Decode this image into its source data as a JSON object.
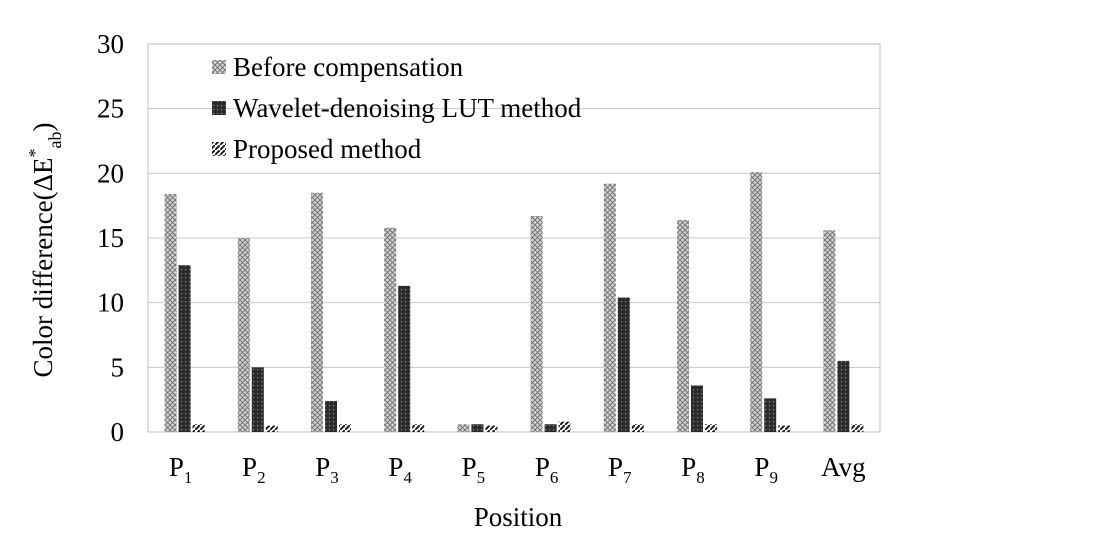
{
  "chart_data": {
    "type": "bar",
    "title": "",
    "xlabel": "Position",
    "ylabel": "Color difference(ΔE*ab)",
    "ylim": [
      0,
      30
    ],
    "yticks": [
      0,
      5,
      10,
      15,
      20,
      25,
      30
    ],
    "grid": true,
    "legend_position": "top-left",
    "categories": [
      {
        "main": "P",
        "sub": "1"
      },
      {
        "main": "P",
        "sub": "2"
      },
      {
        "main": "P",
        "sub": "3"
      },
      {
        "main": "P",
        "sub": "4"
      },
      {
        "main": "P",
        "sub": "5"
      },
      {
        "main": "P",
        "sub": "6"
      },
      {
        "main": "P",
        "sub": "7"
      },
      {
        "main": "P",
        "sub": "8"
      },
      {
        "main": "P",
        "sub": "9"
      },
      {
        "main": "Avg",
        "sub": ""
      }
    ],
    "series": [
      {
        "name": "Before compensation",
        "pattern": "crosshatch",
        "values": [
          18.4,
          15.0,
          18.5,
          15.8,
          0.6,
          16.7,
          19.2,
          16.4,
          20.1,
          15.6
        ]
      },
      {
        "name": "Wavelet-denoising LUT method",
        "pattern": "dark",
        "values": [
          12.9,
          5.0,
          2.4,
          11.3,
          0.6,
          0.6,
          10.4,
          3.6,
          2.6,
          5.5
        ]
      },
      {
        "name": "Proposed method",
        "pattern": "diagonal",
        "values": [
          0.6,
          0.5,
          0.6,
          0.6,
          0.5,
          0.8,
          0.6,
          0.6,
          0.5,
          0.6
        ]
      }
    ]
  }
}
